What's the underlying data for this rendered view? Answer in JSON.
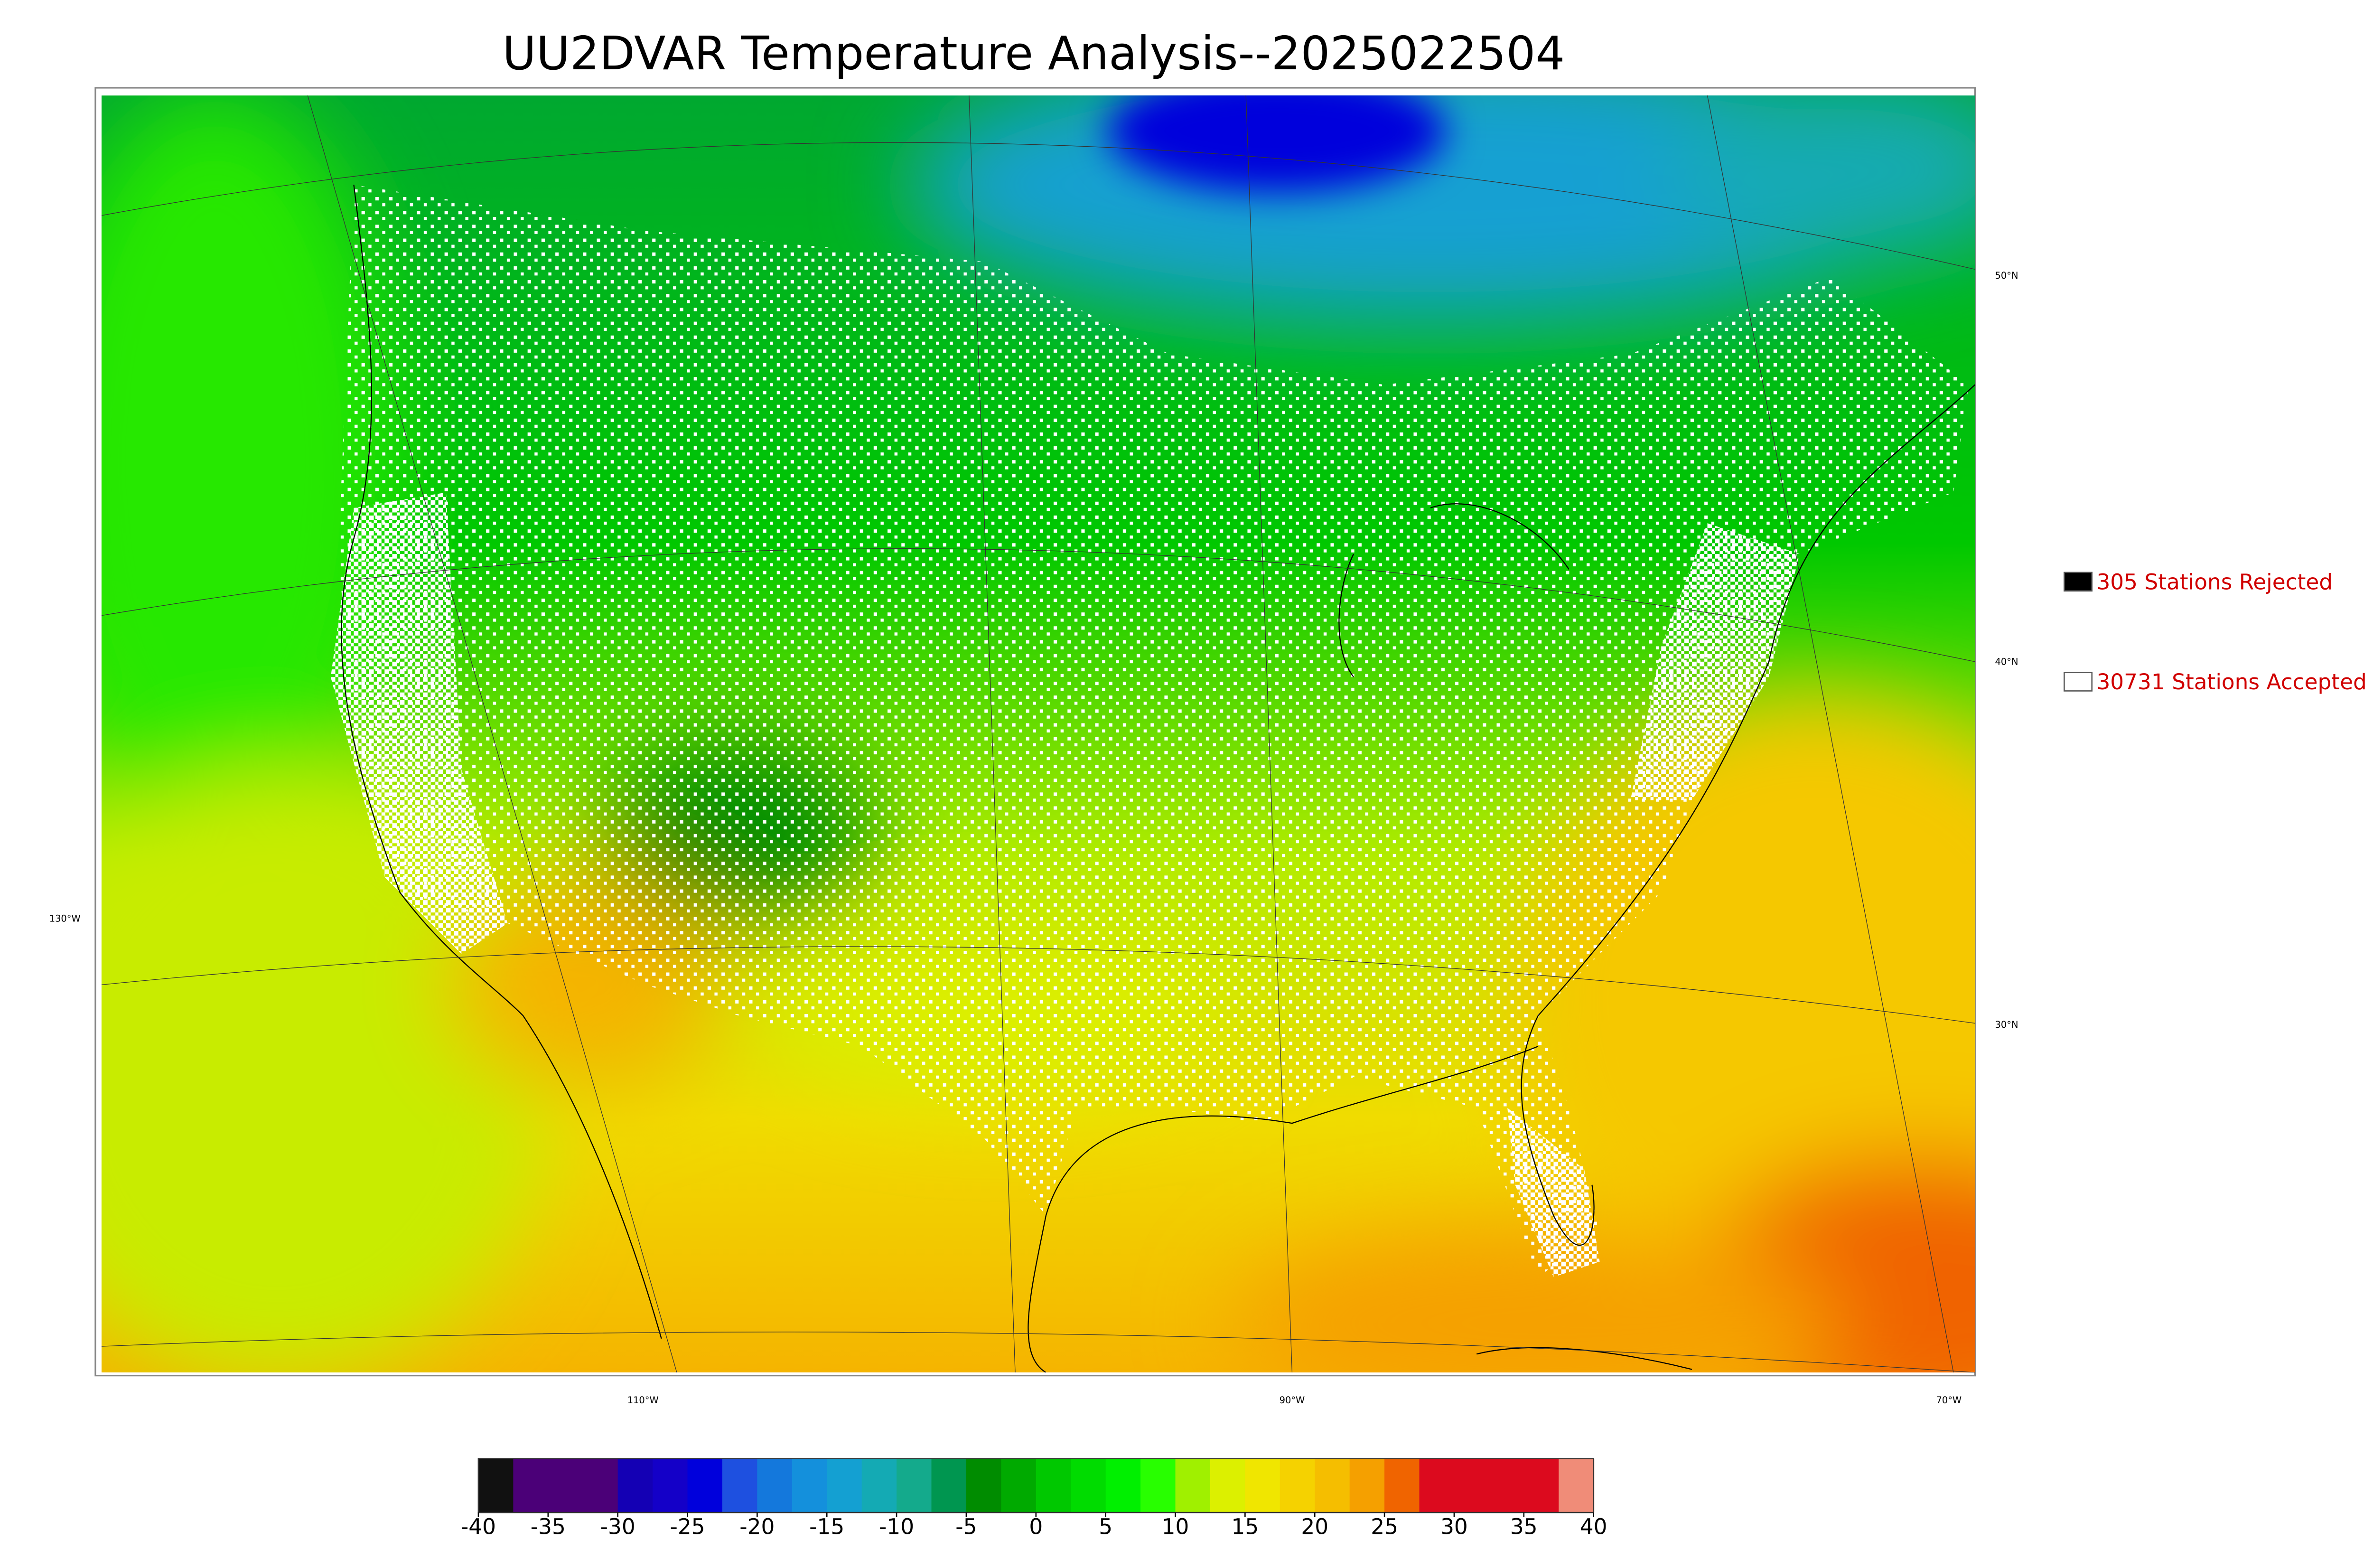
{
  "title": "UU2DVAR Temperature Analysis--2025022504",
  "legend": [
    {
      "label": "305 Stations Rejected",
      "color": "#000000"
    },
    {
      "label": "30731 Stations Accepted",
      "color": "#ffffff"
    }
  ],
  "graticule": {
    "lat_labels": [
      "50°N",
      "40°N",
      "30°N",
      "130°W"
    ],
    "lon_labels": [
      "110°W",
      "90°W",
      "70°W"
    ]
  },
  "colorbar": {
    "ticks": [
      -40,
      -35,
      -30,
      -25,
      -20,
      -15,
      -10,
      -5,
      0,
      5,
      10,
      15,
      20,
      25,
      30,
      35,
      40
    ],
    "colors": [
      "#111111",
      "#4b0078",
      "#4b0078",
      "#4b0078",
      "#1400b4",
      "#1400c8",
      "#0000dc",
      "#1e50e0",
      "#1478dc",
      "#1490dc",
      "#14a0d2",
      "#14aab4",
      "#14aa8c",
      "#009650",
      "#008c00",
      "#00aa00",
      "#00c800",
      "#00dc00",
      "#00f000",
      "#28ff00",
      "#a0f000",
      "#dcf000",
      "#f0e600",
      "#f5d200",
      "#f5be00",
      "#f5a000",
      "#f06400",
      "#dc0a1e",
      "#dc0a1e",
      "#dc0a1e",
      "#dc0a1e",
      "#f08c78"
    ]
  }
}
